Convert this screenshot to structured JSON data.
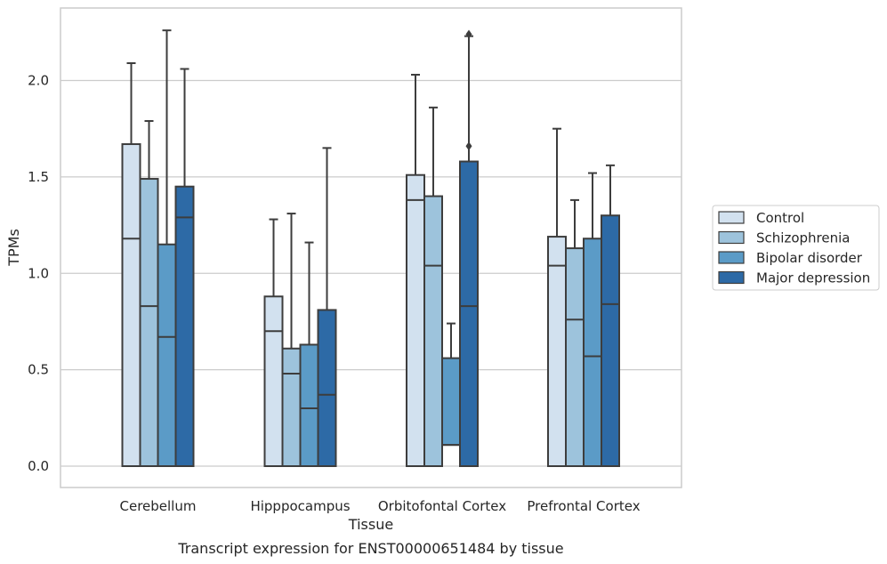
{
  "chart_data": {
    "type": "boxplot",
    "title": "",
    "caption": "Transcript expression for ENST00000651484 by tissue",
    "xlabel": "Tissue",
    "ylabel": "TPMs",
    "ylim": [
      -0.11,
      2.38
    ],
    "yticks": [
      "0.0",
      "0.5",
      "1.0",
      "1.5",
      "2.0"
    ],
    "ytick_values": [
      0.0,
      0.5,
      1.0,
      1.5,
      2.0
    ],
    "grid": "horizontal",
    "legend_position": "right",
    "categories": [
      "Cerebellum",
      "Hipppocampus",
      "Orbitofontal Cortex",
      "Prefrontal Cortex"
    ],
    "series": [
      {
        "name": "Control",
        "color": "#d2e1ef",
        "boxes": [
          {
            "q1": 0.0,
            "median": 1.18,
            "q3": 1.67,
            "whisker_low": 0.0,
            "whisker_high": 2.09,
            "outliers": []
          },
          {
            "q1": 0.0,
            "median": 0.7,
            "q3": 0.88,
            "whisker_low": 0.0,
            "whisker_high": 1.28,
            "outliers": []
          },
          {
            "q1": 0.0,
            "median": 1.38,
            "q3": 1.51,
            "whisker_low": 0.0,
            "whisker_high": 2.03,
            "outliers": []
          },
          {
            "q1": 0.0,
            "median": 1.04,
            "q3": 1.19,
            "whisker_low": 0.0,
            "whisker_high": 1.75,
            "outliers": []
          }
        ]
      },
      {
        "name": "Schizophrenia",
        "color": "#9dc3dc",
        "boxes": [
          {
            "q1": 0.0,
            "median": 0.83,
            "q3": 1.49,
            "whisker_low": 0.0,
            "whisker_high": 1.79,
            "outliers": []
          },
          {
            "q1": 0.0,
            "median": 0.48,
            "q3": 0.61,
            "whisker_low": 0.0,
            "whisker_high": 1.31,
            "outliers": []
          },
          {
            "q1": 0.0,
            "median": 1.04,
            "q3": 1.4,
            "whisker_low": 0.0,
            "whisker_high": 1.86,
            "outliers": []
          },
          {
            "q1": 0.0,
            "median": 0.76,
            "q3": 1.13,
            "whisker_low": 0.0,
            "whisker_high": 1.38,
            "outliers": []
          }
        ]
      },
      {
        "name": "Bipolar disorder",
        "color": "#5b9bc7",
        "boxes": [
          {
            "q1": 0.0,
            "median": 0.67,
            "q3": 1.15,
            "whisker_low": 0.0,
            "whisker_high": 2.26,
            "outliers": []
          },
          {
            "q1": 0.0,
            "median": 0.3,
            "q3": 0.63,
            "whisker_low": 0.0,
            "whisker_high": 1.16,
            "outliers": []
          },
          {
            "q1": 0.11,
            "median": 0.11,
            "q3": 0.56,
            "whisker_low": 0.0,
            "whisker_high": 0.74,
            "outliers": []
          },
          {
            "q1": 0.0,
            "median": 0.57,
            "q3": 1.18,
            "whisker_low": 0.0,
            "whisker_high": 1.52,
            "outliers": []
          }
        ]
      },
      {
        "name": "Major depression",
        "color": "#2d6aa6",
        "boxes": [
          {
            "q1": 0.0,
            "median": 1.29,
            "q3": 1.45,
            "whisker_low": 0.0,
            "whisker_high": 2.06,
            "outliers": []
          },
          {
            "q1": 0.0,
            "median": 0.37,
            "q3": 0.81,
            "whisker_low": 0.0,
            "whisker_high": 1.65,
            "outliers": []
          },
          {
            "q1": 0.0,
            "median": 0.83,
            "q3": 1.58,
            "whisker_low": 0.0,
            "whisker_high": 2.23,
            "outliers": [
              1.66,
              2.24
            ]
          },
          {
            "q1": 0.0,
            "median": 0.84,
            "q3": 1.3,
            "whisker_low": 0.0,
            "whisker_high": 1.56,
            "outliers": []
          }
        ]
      }
    ]
  }
}
